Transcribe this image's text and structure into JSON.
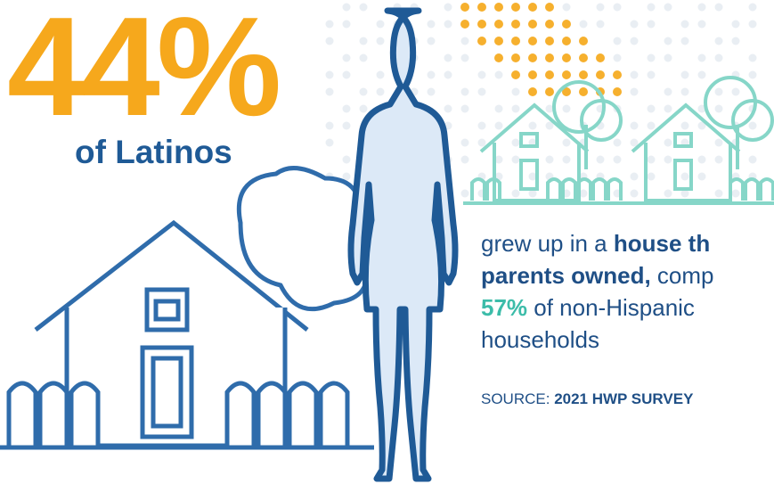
{
  "headline": {
    "stat": "44%",
    "label": "of Latinos"
  },
  "body": {
    "lines": [
      [
        "grew up in a ",
        "house th"
      ],
      [
        "parents owned,",
        " comp"
      ],
      [
        "57%",
        " of non-Hispanic"
      ],
      [
        "households"
      ]
    ]
  },
  "source": {
    "prefix": "SOURCE: ",
    "name": "2021 HWP SURVEY"
  }
}
